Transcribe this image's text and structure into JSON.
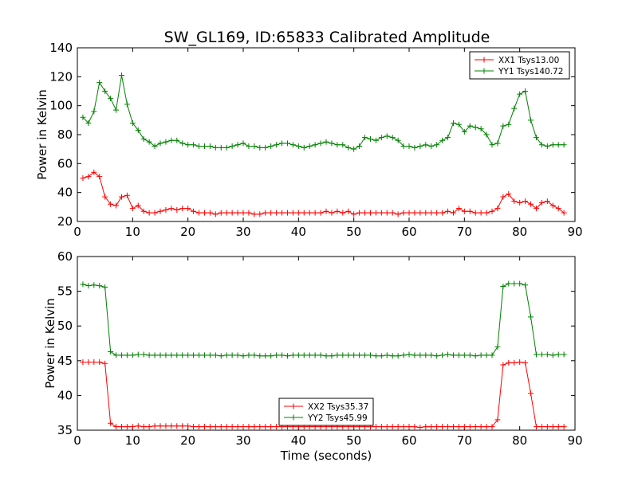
{
  "chart_data": [
    {
      "type": "line",
      "title": "SW_GL169, ID:65833 Calibrated Amplitude",
      "xlabel": "",
      "ylabel": "Power in Kelvin",
      "xlim": [
        0,
        90
      ],
      "ylim": [
        20,
        140
      ],
      "xticks": [
        "0",
        "10",
        "20",
        "30",
        "40",
        "50",
        "60",
        "70",
        "80",
        "90"
      ],
      "yticks": [
        "20",
        "40",
        "60",
        "80",
        "100",
        "120",
        "140"
      ],
      "grid": false,
      "legend_position": "top-right",
      "x": [
        1,
        2,
        3,
        4,
        5,
        6,
        7,
        8,
        9,
        10,
        11,
        12,
        13,
        14,
        15,
        16,
        17,
        18,
        19,
        20,
        21,
        22,
        23,
        24,
        25,
        26,
        27,
        28,
        29,
        30,
        31,
        32,
        33,
        34,
        35,
        36,
        37,
        38,
        39,
        40,
        41,
        42,
        43,
        44,
        45,
        46,
        47,
        48,
        49,
        50,
        51,
        52,
        53,
        54,
        55,
        56,
        57,
        58,
        59,
        60,
        61,
        62,
        63,
        64,
        65,
        66,
        67,
        68,
        69,
        70,
        71,
        72,
        73,
        74,
        75,
        76,
        77,
        78,
        79,
        80,
        81,
        82,
        83,
        84,
        85,
        86,
        87,
        88
      ],
      "series": [
        {
          "name": "XX1 Tsys13.00",
          "color": "#ff0000",
          "values": [
            50,
            51,
            54,
            51,
            37,
            32,
            31,
            37,
            38,
            29,
            31,
            27,
            26,
            26,
            27,
            28,
            29,
            28,
            29,
            29,
            27,
            26,
            26,
            26,
            25,
            26,
            26,
            26,
            26,
            26,
            26,
            25,
            25,
            26,
            26,
            26,
            26,
            26,
            26,
            26,
            26,
            26,
            26,
            26,
            27,
            26,
            27,
            26,
            27,
            25,
            26,
            26,
            26,
            26,
            26,
            26,
            26,
            25,
            26,
            26,
            26,
            26,
            26,
            26,
            26,
            26,
            27,
            26,
            29,
            27,
            27,
            26,
            26,
            26,
            27,
            29,
            37,
            39,
            34,
            33,
            34,
            32,
            29,
            33,
            34,
            31,
            29,
            26
          ]
        },
        {
          "name": "YY1 Tsys140.72",
          "color": "#008000",
          "values": [
            92,
            88,
            96,
            116,
            110,
            105,
            97,
            121,
            101,
            88,
            83,
            77,
            75,
            72,
            74,
            75,
            76,
            76,
            74,
            73,
            73,
            72,
            72,
            72,
            71,
            71,
            71,
            72,
            73,
            74,
            72,
            72,
            71,
            71,
            72,
            73,
            74,
            74,
            73,
            72,
            71,
            72,
            73,
            74,
            75,
            74,
            73,
            73,
            71,
            70,
            72,
            78,
            77,
            76,
            78,
            79,
            78,
            76,
            72,
            72,
            71,
            72,
            73,
            72,
            73,
            76,
            78,
            88,
            87,
            82,
            86,
            85,
            84,
            80,
            73,
            74,
            86,
            87,
            98,
            108,
            110,
            90,
            78,
            73,
            72,
            73,
            73,
            73
          ]
        }
      ]
    },
    {
      "type": "line",
      "title": "",
      "xlabel": "Time (seconds)",
      "ylabel": "Power in Kelvin",
      "xlim": [
        0,
        90
      ],
      "ylim": [
        35,
        60
      ],
      "xticks": [
        "0",
        "10",
        "20",
        "30",
        "40",
        "50",
        "60",
        "70",
        "80",
        "90"
      ],
      "yticks": [
        "35",
        "40",
        "45",
        "50",
        "55",
        "60"
      ],
      "grid": false,
      "legend_position": "bottom-center",
      "x": [
        1,
        2,
        3,
        4,
        5,
        6,
        7,
        8,
        9,
        10,
        11,
        12,
        13,
        14,
        15,
        16,
        17,
        18,
        19,
        20,
        21,
        22,
        23,
        24,
        25,
        26,
        27,
        28,
        29,
        30,
        31,
        32,
        33,
        34,
        35,
        36,
        37,
        38,
        39,
        40,
        41,
        42,
        43,
        44,
        45,
        46,
        47,
        48,
        49,
        50,
        51,
        52,
        53,
        54,
        55,
        56,
        57,
        58,
        59,
        60,
        61,
        62,
        63,
        64,
        65,
        66,
        67,
        68,
        69,
        70,
        71,
        72,
        73,
        74,
        75,
        76,
        77,
        78,
        79,
        80,
        81,
        82,
        83,
        84,
        85,
        86,
        87,
        88
      ],
      "series": [
        {
          "name": "XX2 Tsys35.37",
          "color": "#ff0000",
          "values": [
            44.8,
            44.8,
            44.8,
            44.8,
            44.6,
            36.0,
            35.5,
            35.5,
            35.5,
            35.5,
            35.6,
            35.5,
            35.5,
            35.6,
            35.6,
            35.6,
            35.6,
            35.6,
            35.6,
            35.6,
            35.5,
            35.5,
            35.5,
            35.5,
            35.5,
            35.5,
            35.5,
            35.5,
            35.5,
            35.5,
            35.5,
            35.5,
            35.5,
            35.5,
            35.5,
            35.5,
            35.5,
            35.5,
            35.5,
            35.5,
            35.5,
            35.5,
            35.5,
            35.5,
            35.5,
            35.5,
            35.5,
            35.5,
            35.5,
            35.5,
            35.5,
            35.5,
            35.5,
            35.5,
            35.5,
            35.5,
            35.5,
            35.5,
            35.5,
            35.5,
            35.5,
            35.4,
            35.5,
            35.5,
            35.5,
            35.5,
            35.5,
            35.5,
            35.5,
            35.5,
            35.5,
            35.5,
            35.5,
            35.5,
            35.5,
            36.5,
            44.4,
            44.7,
            44.7,
            44.8,
            44.7,
            40.3,
            35.5,
            35.5,
            35.5,
            35.5,
            35.5,
            35.5
          ]
        },
        {
          "name": "YY2 Tsys45.99",
          "color": "#008000",
          "values": [
            56.0,
            55.8,
            55.9,
            55.8,
            55.6,
            46.3,
            45.8,
            45.8,
            45.8,
            45.8,
            45.9,
            45.9,
            45.8,
            45.8,
            45.8,
            45.8,
            45.8,
            45.8,
            45.8,
            45.8,
            45.8,
            45.8,
            45.8,
            45.8,
            45.8,
            45.7,
            45.8,
            45.8,
            45.8,
            45.7,
            45.8,
            45.8,
            45.7,
            45.7,
            45.7,
            45.8,
            45.8,
            45.7,
            45.8,
            45.8,
            45.8,
            45.8,
            45.8,
            45.8,
            45.7,
            45.7,
            45.8,
            45.8,
            45.8,
            45.8,
            45.8,
            45.8,
            45.8,
            45.7,
            45.7,
            45.8,
            45.7,
            45.7,
            45.8,
            45.9,
            45.8,
            45.8,
            45.8,
            45.8,
            45.7,
            45.8,
            45.9,
            45.8,
            45.8,
            45.8,
            45.8,
            45.7,
            45.8,
            45.8,
            45.8,
            47.0,
            55.7,
            56.1,
            56.1,
            56.1,
            55.9,
            51.3,
            45.9,
            45.9,
            45.9,
            45.8,
            45.9,
            45.9
          ]
        }
      ]
    }
  ]
}
